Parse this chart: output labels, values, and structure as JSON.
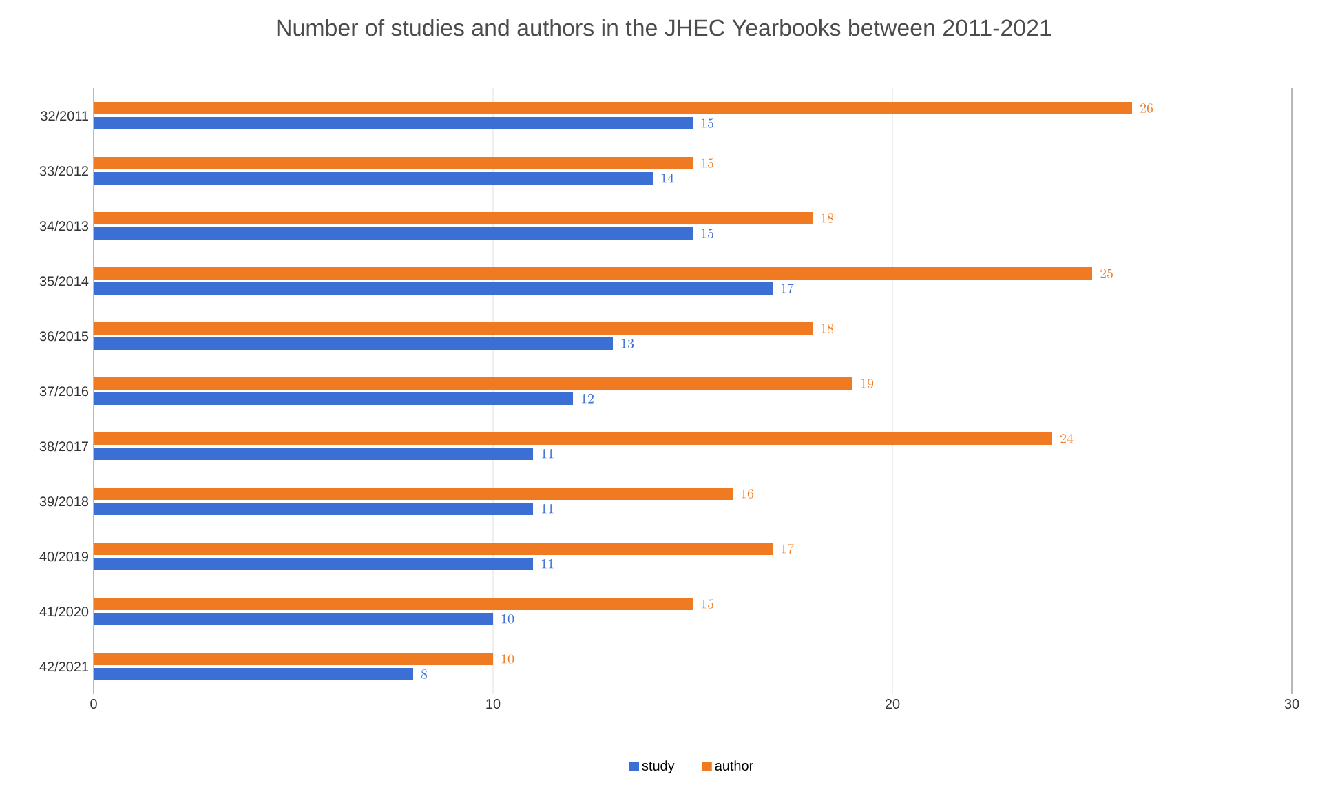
{
  "chart_data": {
    "type": "bar",
    "orientation": "horizontal",
    "title": "Number of studies and authors in the JHEC Yearbooks between 2011-2021",
    "categories": [
      "32/2011",
      "33/2012",
      "34/2013",
      "35/2014",
      "36/2015",
      "37/2016",
      "38/2017",
      "39/2018",
      "40/2019",
      "41/2020",
      "42/2021"
    ],
    "series": [
      {
        "name": "study",
        "color": "#3c6fd4",
        "values": [
          15,
          14,
          15,
          17,
          13,
          12,
          11,
          11,
          11,
          10,
          8
        ]
      },
      {
        "name": "author",
        "color": "#f07a22",
        "values": [
          26,
          15,
          18,
          25,
          18,
          19,
          24,
          16,
          17,
          15,
          10
        ]
      }
    ],
    "xlim": [
      0,
      30
    ],
    "xticks": [
      0,
      10,
      20,
      30
    ],
    "grid": "x",
    "legend": "bottom",
    "data_labels": true
  }
}
